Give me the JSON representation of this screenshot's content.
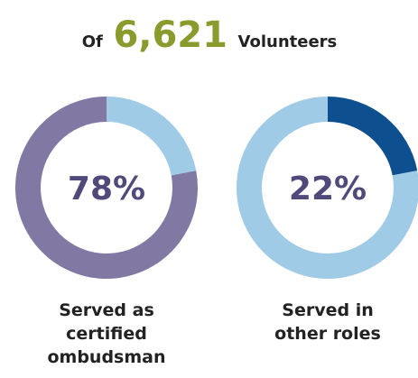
{
  "header": {
    "prefix": "Of",
    "number": "6,621",
    "suffix": "Volunteers"
  },
  "chart_data": [
    {
      "type": "donut",
      "direction": "counterclockwise",
      "categories": [
        "Served as certified ombudsman",
        null
      ],
      "values": [
        78,
        22
      ],
      "value_labels": [
        "78%",
        null
      ],
      "colors": [
        "#8178a4",
        "#9fcbe6"
      ]
    },
    {
      "type": "donut",
      "direction": "clockwise",
      "categories": [
        "Served in other roles",
        null
      ],
      "values": [
        22,
        78
      ],
      "value_labels": [
        "22%",
        null
      ],
      "colors": [
        "#0d4f8f",
        "#9fcbe6"
      ]
    }
  ]
}
